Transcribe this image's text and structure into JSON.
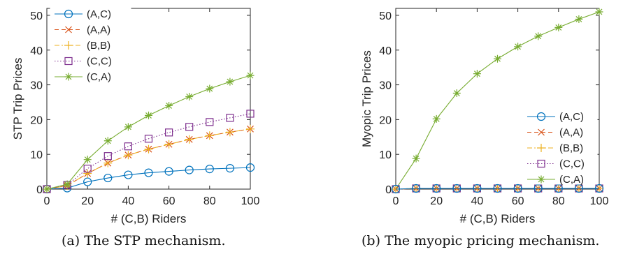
{
  "captions": [
    "(a) The STP mechanism.",
    "(b) The myopic pricing mechanism."
  ],
  "series_styles": [
    {
      "name": "(A,C)",
      "color": "#0072BD",
      "marker": "circle",
      "dash": ""
    },
    {
      "name": "(A,A)",
      "color": "#D95319",
      "marker": "x",
      "dash": "6,4"
    },
    {
      "name": "(B,B)",
      "color": "#EDB120",
      "marker": "plus",
      "dash": "7,3,2,3"
    },
    {
      "name": "(C,C)",
      "color": "#7E2F8E",
      "marker": "square",
      "dash": "1.5,2.5"
    },
    {
      "name": "(C,A)",
      "color": "#77AC30",
      "marker": "star",
      "dash": ""
    }
  ],
  "chart_data": [
    {
      "type": "line",
      "xlabel": "# (C,B) Riders",
      "ylabel": "STP Trip Prices",
      "xlim": [
        0,
        100
      ],
      "ylim": [
        0,
        52
      ],
      "xticks": [
        0,
        20,
        40,
        60,
        80,
        100
      ],
      "yticks": [
        0,
        10,
        20,
        30,
        40,
        50
      ],
      "legend_position": "top-left",
      "grid": false,
      "x": [
        0,
        10,
        20,
        30,
        40,
        50,
        60,
        70,
        80,
        90,
        100
      ],
      "series": [
        {
          "name": "(A,C)",
          "values": [
            0,
            0.3,
            2.1,
            3.2,
            4.1,
            4.7,
            5.1,
            5.5,
            5.8,
            6.0,
            6.2
          ]
        },
        {
          "name": "(A,A)",
          "values": [
            0,
            1.0,
            4.5,
            7.5,
            9.8,
            11.5,
            12.9,
            14.3,
            15.4,
            16.4,
            17.3
          ]
        },
        {
          "name": "(B,B)",
          "values": [
            0,
            1.0,
            4.5,
            7.5,
            9.8,
            11.5,
            12.9,
            14.3,
            15.4,
            16.4,
            17.3
          ]
        },
        {
          "name": "(C,C)",
          "values": [
            0,
            1.2,
            5.9,
            9.5,
            12.3,
            14.5,
            16.3,
            17.9,
            19.3,
            20.5,
            21.7
          ]
        },
        {
          "name": "(C,A)",
          "values": [
            0,
            1.4,
            8.5,
            13.9,
            17.9,
            21.2,
            24.0,
            26.6,
            28.9,
            30.9,
            32.7
          ]
        }
      ]
    },
    {
      "type": "line",
      "xlabel": "# (C,B) Riders",
      "ylabel": "Myopic Trip Prices",
      "xlim": [
        0,
        100
      ],
      "ylim": [
        0,
        52
      ],
      "xticks": [
        0,
        20,
        40,
        60,
        80,
        100
      ],
      "yticks": [
        0,
        10,
        20,
        30,
        40,
        50
      ],
      "legend_position": "center-right",
      "grid": false,
      "x": [
        0,
        10,
        20,
        30,
        40,
        50,
        60,
        70,
        80,
        90,
        100
      ],
      "series": [
        {
          "name": "(A,C)",
          "values": [
            0,
            0.2,
            0.2,
            0.2,
            0.2,
            0.2,
            0.2,
            0.2,
            0.2,
            0.2,
            0.2
          ]
        },
        {
          "name": "(A,A)",
          "values": [
            0,
            0.2,
            0.2,
            0.2,
            0.2,
            0.2,
            0.2,
            0.2,
            0.2,
            0.2,
            0.2
          ]
        },
        {
          "name": "(B,B)",
          "values": [
            0,
            0.2,
            0.2,
            0.2,
            0.2,
            0.2,
            0.2,
            0.2,
            0.2,
            0.2,
            0.2
          ]
        },
        {
          "name": "(C,C)",
          "values": [
            0,
            0.2,
            0.2,
            0.2,
            0.2,
            0.2,
            0.2,
            0.2,
            0.2,
            0.2,
            0.2
          ]
        },
        {
          "name": "(C,A)",
          "values": [
            0,
            8.8,
            20.2,
            27.6,
            33.2,
            37.5,
            41.0,
            44.0,
            46.5,
            48.9,
            51.0
          ]
        }
      ]
    }
  ]
}
